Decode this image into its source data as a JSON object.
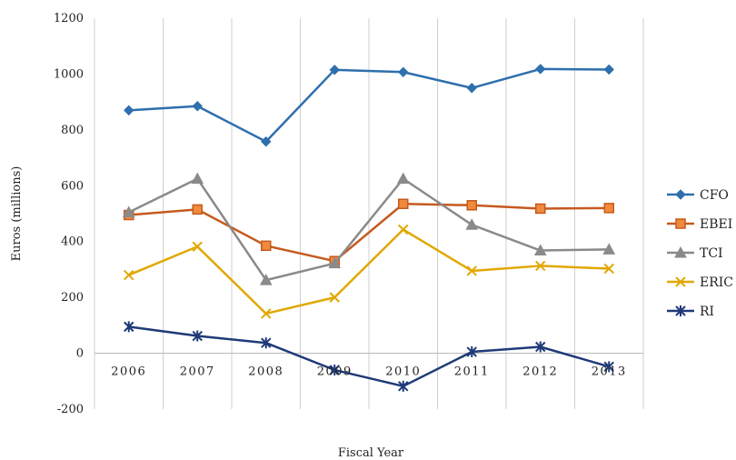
{
  "chart_data": {
    "type": "line",
    "title": "",
    "xlabel": "Fiscal Year",
    "ylabel": "Euros (millions)",
    "categories": [
      "2006",
      "2007",
      "2008",
      "2009",
      "2010",
      "2011",
      "2012",
      "2013"
    ],
    "ylim": [
      -200,
      1200
    ],
    "yticks": [
      -200,
      0,
      200,
      400,
      600,
      800,
      1000,
      1200
    ],
    "grid": "vertical",
    "legend_position": "right",
    "series": [
      {
        "name": "CFO",
        "color": "#2e6fad",
        "marker": "diamond",
        "values": [
          870,
          885,
          758,
          1015,
          1007,
          950,
          1018,
          1016
        ]
      },
      {
        "name": "EBEI",
        "color": "#c55a1e",
        "marker": "square",
        "values": [
          495,
          515,
          385,
          330,
          535,
          530,
          518,
          520
        ]
      },
      {
        "name": "TCI",
        "color": "#8a8a8a",
        "marker": "triangle",
        "values": [
          505,
          625,
          262,
          322,
          625,
          460,
          368,
          372
        ]
      },
      {
        "name": "ERIC",
        "color": "#e0a800",
        "marker": "x",
        "values": [
          280,
          382,
          142,
          200,
          443,
          295,
          313,
          303
        ]
      },
      {
        "name": "RI",
        "color": "#1f3a78",
        "marker": "asterisk",
        "values": [
          95,
          62,
          37,
          -60,
          -118,
          5,
          23,
          -48
        ]
      }
    ]
  }
}
